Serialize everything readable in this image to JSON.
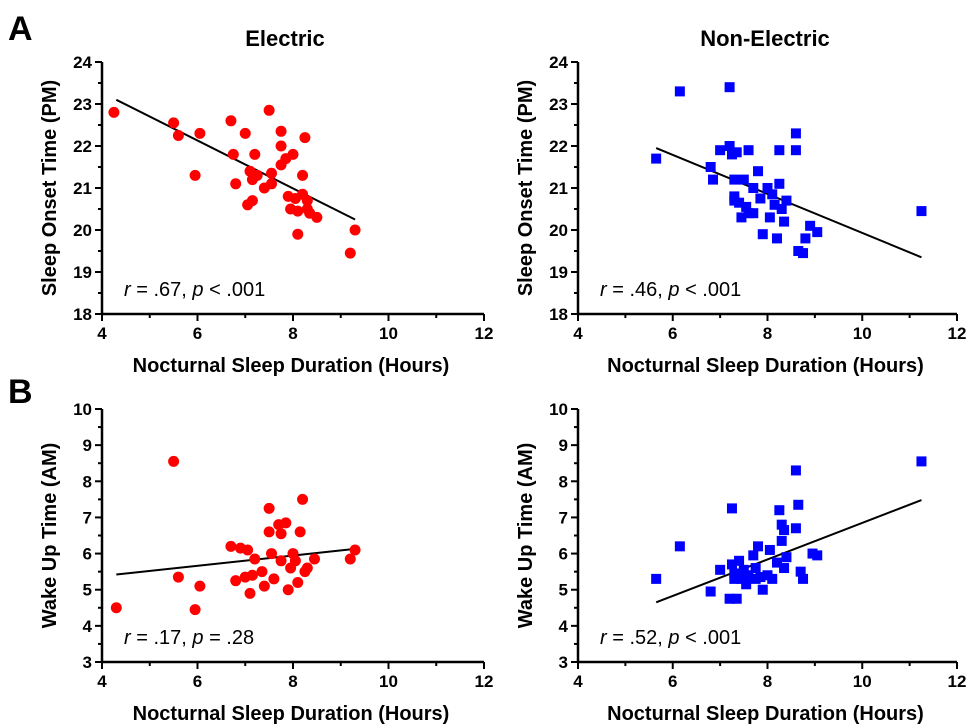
{
  "figure": {
    "panel_letters": [
      "A",
      "B"
    ],
    "column_titles": [
      "Electric",
      "Non-Electric"
    ],
    "colors": {
      "electric": "#ff0000",
      "non_electric": "#0000ff",
      "line": "#000000"
    }
  },
  "chart_data": [
    {
      "id": "A-electric",
      "type": "scatter",
      "title": "Electric",
      "xlabel": "Nocturnal Sleep Duration (Hours)",
      "ylabel": "Sleep Onset Time (PM)",
      "xlim": [
        4,
        12
      ],
      "ylim": [
        18,
        24
      ],
      "xticks": [
        "4",
        "6",
        "8",
        "10",
        "12"
      ],
      "yticks": [
        "18",
        "19",
        "20",
        "21",
        "22",
        "23",
        "24"
      ],
      "marker": "circle",
      "color": "#ff0000",
      "points": [
        [
          4.25,
          22.8
        ],
        [
          5.5,
          22.55
        ],
        [
          5.6,
          22.25
        ],
        [
          6.05,
          22.3
        ],
        [
          5.95,
          21.3
        ],
        [
          6.7,
          22.6
        ],
        [
          6.75,
          21.8
        ],
        [
          6.8,
          21.1
        ],
        [
          7.0,
          22.3
        ],
        [
          7.1,
          21.4
        ],
        [
          7.05,
          20.6
        ],
        [
          7.15,
          20.7
        ],
        [
          7.15,
          21.2
        ],
        [
          7.2,
          21.8
        ],
        [
          7.25,
          21.3
        ],
        [
          7.4,
          21.0
        ],
        [
          7.5,
          22.85
        ],
        [
          7.55,
          21.35
        ],
        [
          7.55,
          21.1
        ],
        [
          7.75,
          22.0
        ],
        [
          7.75,
          21.55
        ],
        [
          7.75,
          22.35
        ],
        [
          7.85,
          21.7
        ],
        [
          7.9,
          20.8
        ],
        [
          7.95,
          20.5
        ],
        [
          8.0,
          21.8
        ],
        [
          8.05,
          20.75
        ],
        [
          8.1,
          20.45
        ],
        [
          8.1,
          19.9
        ],
        [
          8.2,
          21.3
        ],
        [
          8.2,
          20.85
        ],
        [
          8.25,
          22.2
        ],
        [
          8.3,
          20.7
        ],
        [
          8.3,
          20.5
        ],
        [
          8.35,
          20.4
        ],
        [
          8.5,
          20.3
        ],
        [
          9.2,
          19.45
        ],
        [
          9.3,
          20.0
        ]
      ],
      "fit": {
        "x": [
          4.3,
          9.3
        ],
        "y": [
          23.1,
          20.25
        ]
      },
      "annotation": {
        "r_label": "r",
        "r_text": " = .67, ",
        "p_label": "p",
        "p_text": " < .001"
      }
    },
    {
      "id": "A-non-electric",
      "type": "scatter",
      "title": "Non-Electric",
      "xlabel": "Nocturnal Sleep Duration (Hours)",
      "ylabel": "Sleep Onset Time (PM)",
      "xlim": [
        4,
        12
      ],
      "ylim": [
        18,
        24
      ],
      "xticks": [
        "4",
        "6",
        "8",
        "10",
        "12"
      ],
      "yticks": [
        "18",
        "19",
        "20",
        "21",
        "22",
        "23",
        "24"
      ],
      "marker": "square",
      "color": "#0000ff",
      "points": [
        [
          5.65,
          21.7
        ],
        [
          6.15,
          23.3
        ],
        [
          6.8,
          21.5
        ],
        [
          6.85,
          21.2
        ],
        [
          7.0,
          21.9
        ],
        [
          7.2,
          23.4
        ],
        [
          7.2,
          22.0
        ],
        [
          7.25,
          21.8
        ],
        [
          7.3,
          21.2
        ],
        [
          7.3,
          20.8
        ],
        [
          7.3,
          20.7
        ],
        [
          7.35,
          21.85
        ],
        [
          7.4,
          20.65
        ],
        [
          7.45,
          20.3
        ],
        [
          7.5,
          21.2
        ],
        [
          7.55,
          20.55
        ],
        [
          7.6,
          21.9
        ],
        [
          7.6,
          20.4
        ],
        [
          7.7,
          21.0
        ],
        [
          7.7,
          20.4
        ],
        [
          7.8,
          21.4
        ],
        [
          7.85,
          20.75
        ],
        [
          7.9,
          19.9
        ],
        [
          8.0,
          21.0
        ],
        [
          8.05,
          20.3
        ],
        [
          8.1,
          20.85
        ],
        [
          8.15,
          20.6
        ],
        [
          8.2,
          19.8
        ],
        [
          8.25,
          21.9
        ],
        [
          8.25,
          21.1
        ],
        [
          8.3,
          20.5
        ],
        [
          8.35,
          20.2
        ],
        [
          8.4,
          20.7
        ],
        [
          8.6,
          22.3
        ],
        [
          8.6,
          21.9
        ],
        [
          8.65,
          19.5
        ],
        [
          8.75,
          19.45
        ],
        [
          8.8,
          19.8
        ],
        [
          8.9,
          20.1
        ],
        [
          9.05,
          19.95
        ],
        [
          11.25,
          20.45
        ]
      ],
      "fit": {
        "x": [
          5.65,
          11.25
        ],
        "y": [
          21.95,
          19.35
        ]
      },
      "annotation": {
        "r_label": "r",
        "r_text": " = .46, ",
        "p_label": "p",
        "p_text": " < .001"
      }
    },
    {
      "id": "B-electric",
      "type": "scatter",
      "xlabel": "Nocturnal Sleep Duration (Hours)",
      "ylabel": "Wake Up Time (AM)",
      "xlim": [
        4,
        12
      ],
      "ylim": [
        3,
        10
      ],
      "xticks": [
        "4",
        "6",
        "8",
        "10",
        "12"
      ],
      "yticks": [
        "3",
        "4",
        "5",
        "6",
        "7",
        "8",
        "9",
        "10"
      ],
      "marker": "circle",
      "color": "#ff0000",
      "points": [
        [
          4.3,
          4.5
        ],
        [
          5.5,
          8.55
        ],
        [
          5.6,
          5.35
        ],
        [
          5.95,
          4.45
        ],
        [
          6.05,
          5.1
        ],
        [
          6.7,
          6.2
        ],
        [
          6.8,
          5.25
        ],
        [
          6.9,
          6.15
        ],
        [
          7.0,
          5.35
        ],
        [
          7.05,
          6.1
        ],
        [
          7.1,
          4.9
        ],
        [
          7.15,
          5.4
        ],
        [
          7.2,
          5.85
        ],
        [
          7.35,
          5.5
        ],
        [
          7.4,
          5.1
        ],
        [
          7.5,
          7.25
        ],
        [
          7.5,
          6.6
        ],
        [
          7.55,
          6.0
        ],
        [
          7.6,
          5.3
        ],
        [
          7.7,
          6.8
        ],
        [
          7.75,
          6.55
        ],
        [
          7.75,
          5.8
        ],
        [
          7.85,
          6.85
        ],
        [
          7.9,
          5.0
        ],
        [
          7.95,
          5.6
        ],
        [
          8.0,
          6.0
        ],
        [
          8.05,
          5.8
        ],
        [
          8.1,
          5.2
        ],
        [
          8.15,
          6.6
        ],
        [
          8.2,
          7.5
        ],
        [
          8.25,
          5.5
        ],
        [
          8.3,
          5.6
        ],
        [
          8.45,
          5.85
        ],
        [
          9.2,
          5.85
        ],
        [
          9.3,
          6.1
        ]
      ],
      "fit": {
        "x": [
          4.3,
          9.3
        ],
        "y": [
          5.42,
          6.13
        ]
      },
      "annotation": {
        "r_label": "r",
        "r_text": " = .17, ",
        "p_label": "p",
        "p_text": " = .28"
      }
    },
    {
      "id": "B-non-electric",
      "type": "scatter",
      "xlabel": "Nocturnal Sleep Duration (Hours)",
      "ylabel": "Wake Up Time (AM)",
      "xlim": [
        4,
        12
      ],
      "ylim": [
        3,
        10
      ],
      "xticks": [
        "4",
        "6",
        "8",
        "10",
        "12"
      ],
      "yticks": [
        "3",
        "4",
        "5",
        "6",
        "7",
        "8",
        "9",
        "10"
      ],
      "marker": "square",
      "color": "#0000ff",
      "points": [
        [
          5.65,
          5.3
        ],
        [
          6.15,
          6.2
        ],
        [
          6.8,
          4.95
        ],
        [
          7.0,
          5.55
        ],
        [
          7.2,
          4.75
        ],
        [
          7.25,
          7.25
        ],
        [
          7.25,
          5.7
        ],
        [
          7.3,
          5.3
        ],
        [
          7.3,
          5.45
        ],
        [
          7.35,
          4.75
        ],
        [
          7.4,
          5.8
        ],
        [
          7.45,
          5.3
        ],
        [
          7.5,
          5.55
        ],
        [
          7.55,
          5.15
        ],
        [
          7.6,
          5.4
        ],
        [
          7.7,
          5.95
        ],
        [
          7.75,
          5.3
        ],
        [
          7.75,
          5.6
        ],
        [
          7.8,
          6.2
        ],
        [
          7.85,
          5.35
        ],
        [
          7.9,
          5.0
        ],
        [
          8.0,
          5.4
        ],
        [
          8.05,
          6.1
        ],
        [
          8.1,
          5.3
        ],
        [
          8.2,
          5.75
        ],
        [
          8.25,
          7.2
        ],
        [
          8.3,
          6.8
        ],
        [
          8.3,
          6.35
        ],
        [
          8.35,
          6.65
        ],
        [
          8.35,
          5.6
        ],
        [
          8.4,
          5.9
        ],
        [
          8.6,
          8.3
        ],
        [
          8.6,
          6.7
        ],
        [
          8.65,
          7.35
        ],
        [
          8.7,
          5.5
        ],
        [
          8.75,
          5.3
        ],
        [
          8.95,
          6.0
        ],
        [
          9.05,
          5.95
        ],
        [
          11.25,
          8.55
        ]
      ],
      "fit": {
        "x": [
          5.65,
          11.25
        ],
        "y": [
          4.65,
          7.48
        ]
      },
      "annotation": {
        "r_label": "r",
        "r_text": " = .52, ",
        "p_label": "p",
        "p_text": " < .001"
      }
    }
  ]
}
